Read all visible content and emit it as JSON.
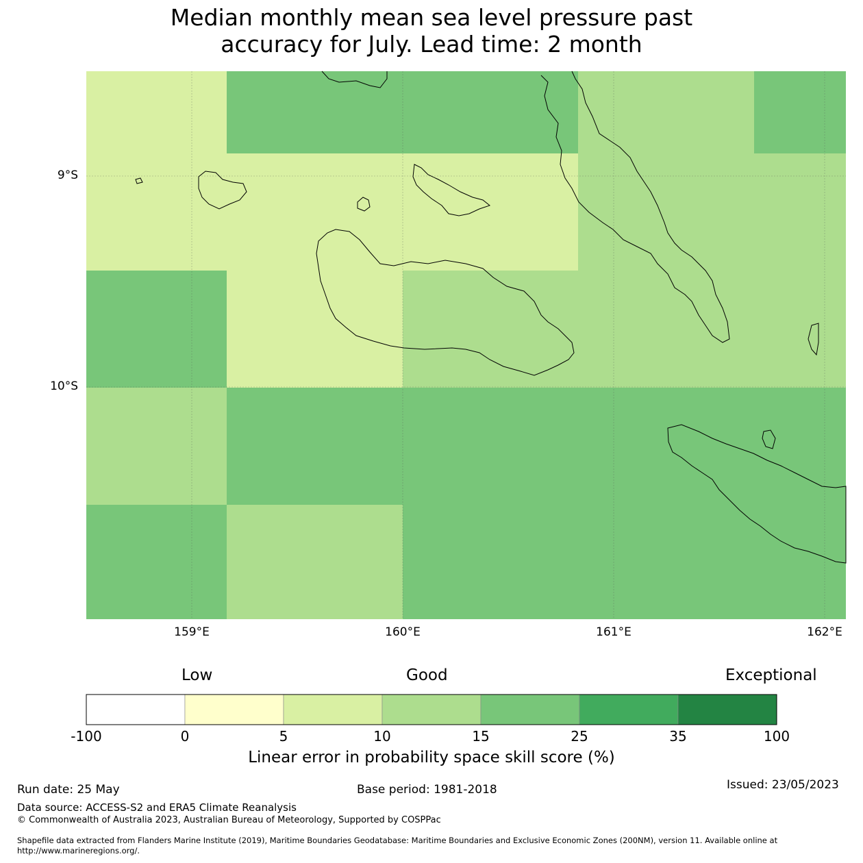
{
  "title": {
    "line1": "Median monthly mean sea level pressure past",
    "line2": "accuracy for July. Lead time: 2 month"
  },
  "map": {
    "lat_labels": [
      "9°S",
      "10°S"
    ],
    "lon_labels": [
      "159°E",
      "160°E",
      "161°E",
      "162°E"
    ],
    "lon_range": [
      158.5,
      162.1
    ],
    "lat_range_south": [
      8.5,
      11.1
    ],
    "skill_grid_pct_class": [
      {
        "lon": [
          158.5,
          159.17
        ],
        "lat": [
          8.5,
          8.89
        ],
        "class": "5-10"
      },
      {
        "lon": [
          159.17,
          160.83
        ],
        "lat": [
          8.5,
          8.89
        ],
        "class": "15-25"
      },
      {
        "lon": [
          160.83,
          161.67
        ],
        "lat": [
          8.5,
          8.89
        ],
        "class": "10-15"
      },
      {
        "lon": [
          161.67,
          162.1
        ],
        "lat": [
          8.5,
          8.89
        ],
        "class": "15-25"
      },
      {
        "lon": [
          158.5,
          160.83
        ],
        "lat": [
          8.89,
          9.44
        ],
        "class": "5-10"
      },
      {
        "lon": [
          160.83,
          162.1
        ],
        "lat": [
          8.89,
          9.44
        ],
        "class": "10-15"
      },
      {
        "lon": [
          158.5,
          159.17
        ],
        "lat": [
          9.44,
          10.0
        ],
        "class": "15-25"
      },
      {
        "lon": [
          159.17,
          160.0
        ],
        "lat": [
          9.44,
          10.0
        ],
        "class": "5-10"
      },
      {
        "lon": [
          160.0,
          162.1
        ],
        "lat": [
          9.44,
          10.0
        ],
        "class": "10-15"
      },
      {
        "lon": [
          158.5,
          159.17
        ],
        "lat": [
          10.0,
          10.56
        ],
        "class": "10-15"
      },
      {
        "lon": [
          159.17,
          162.1
        ],
        "lat": [
          10.0,
          10.56
        ],
        "class": "15-25"
      },
      {
        "lon": [
          158.5,
          159.17
        ],
        "lat": [
          10.56,
          11.1
        ],
        "class": "15-25"
      },
      {
        "lon": [
          159.17,
          160.0
        ],
        "lat": [
          10.56,
          11.1
        ],
        "class": "10-15"
      },
      {
        "lon": [
          160.0,
          162.1
        ],
        "lat": [
          10.56,
          11.1
        ],
        "class": "15-25"
      }
    ]
  },
  "legend": {
    "categories": [
      "Low",
      "Good",
      "Exceptional"
    ],
    "ticks": [
      "-100",
      "0",
      "5",
      "10",
      "15",
      "25",
      "35",
      "100"
    ],
    "colors": [
      "#ffffff",
      "#ffffcc",
      "#d9f0a3",
      "#addd8e",
      "#78c679",
      "#41ab5d",
      "#238443"
    ],
    "title": "Linear error in probability space skill score (%)"
  },
  "footer": {
    "run_date": "Run date: 25 May",
    "base_period": "Base period: 1981-2018",
    "issued": "Issued: 23/05/2023",
    "data_source": "Data source: ACCESS-S2 and ERA5 Climate Reanalysis",
    "copyright": "© Commonwealth of Australia 2023, Australian Bureau of Meteorology, Supported by COSPPac",
    "shapefile_line1": "Shapefile data extracted from Flanders Marine Institute (2019), Maritime Boundaries Geodatabase: Maritime Boundaries and Exclusive Economic Zones (200NM), version 11. Available online at",
    "shapefile_line2": "http://www.marineregions.org/."
  }
}
